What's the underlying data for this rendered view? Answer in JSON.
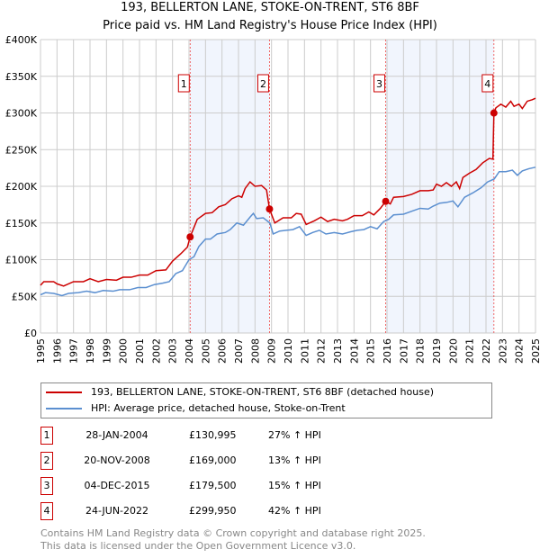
{
  "chart_data": {
    "type": "line",
    "title": "193, BELLERTON LANE, STOKE-ON-TRENT, ST6 8BF",
    "subtitle": "Price paid vs. HM Land Registry's House Price Index (HPI)",
    "xlim": [
      1995,
      2025
    ],
    "ylim": [
      0,
      400000
    ],
    "x_ticks": [
      "1995",
      "1996",
      "1997",
      "1998",
      "1999",
      "2000",
      "2001",
      "2002",
      "2003",
      "2004",
      "2005",
      "2006",
      "2007",
      "2008",
      "2009",
      "2010",
      "2011",
      "2012",
      "2013",
      "2014",
      "2015",
      "2016",
      "2017",
      "2018",
      "2019",
      "2020",
      "2021",
      "2022",
      "2023",
      "2024",
      "2025"
    ],
    "y_ticks": [
      {
        "v": 0,
        "label": "£0"
      },
      {
        "v": 50000,
        "label": "£50K"
      },
      {
        "v": 100000,
        "label": "£100K"
      },
      {
        "v": 150000,
        "label": "£150K"
      },
      {
        "v": 200000,
        "label": "£200K"
      },
      {
        "v": 250000,
        "label": "£250K"
      },
      {
        "v": 300000,
        "label": "£300K"
      },
      {
        "v": 350000,
        "label": "£350K"
      },
      {
        "v": 400000,
        "label": "£400K"
      }
    ],
    "grid": true,
    "series": [
      {
        "name": "193, BELLERTON LANE, STOKE-ON-TRENT, ST6 8BF (detached house)",
        "color": "#cc0000",
        "points": [
          [
            1995,
            65
          ],
          [
            1995.2,
            70
          ],
          [
            1995.8,
            70
          ],
          [
            1996,
            67
          ],
          [
            1996.4,
            64
          ],
          [
            1997,
            70
          ],
          [
            1997.6,
            70
          ],
          [
            1998,
            74
          ],
          [
            1998.5,
            70
          ],
          [
            1999,
            73
          ],
          [
            1999.6,
            72
          ],
          [
            2000,
            76
          ],
          [
            2000.5,
            76
          ],
          [
            2001,
            79
          ],
          [
            2001.5,
            79
          ],
          [
            2002,
            85
          ],
          [
            2002.6,
            86
          ],
          [
            2003,
            98
          ],
          [
            2003.5,
            108
          ],
          [
            2003.9,
            117
          ],
          [
            2004.07,
            131
          ],
          [
            2004.5,
            155
          ],
          [
            2005,
            163
          ],
          [
            2005.4,
            164
          ],
          [
            2005.8,
            172
          ],
          [
            2006.2,
            175
          ],
          [
            2006.6,
            183
          ],
          [
            2007,
            187
          ],
          [
            2007.2,
            185
          ],
          [
            2007.4,
            197
          ],
          [
            2007.7,
            206
          ],
          [
            2008,
            200
          ],
          [
            2008.4,
            201
          ],
          [
            2008.7,
            195
          ],
          [
            2008.88,
            169
          ],
          [
            2009.2,
            150
          ],
          [
            2009.7,
            157
          ],
          [
            2010.2,
            157
          ],
          [
            2010.5,
            163
          ],
          [
            2010.8,
            162
          ],
          [
            2011.1,
            148
          ],
          [
            2011.6,
            153
          ],
          [
            2012,
            158
          ],
          [
            2012.4,
            152
          ],
          [
            2012.8,
            155
          ],
          [
            2013.3,
            153
          ],
          [
            2013.6,
            155
          ],
          [
            2014,
            160
          ],
          [
            2014.5,
            160
          ],
          [
            2014.9,
            165
          ],
          [
            2015.2,
            161
          ],
          [
            2015.6,
            170
          ],
          [
            2015.92,
            179.5
          ],
          [
            2016.2,
            176
          ],
          [
            2016.4,
            185
          ],
          [
            2017,
            186
          ],
          [
            2017.5,
            189
          ],
          [
            2018,
            194
          ],
          [
            2018.5,
            194
          ],
          [
            2018.8,
            195
          ],
          [
            2019,
            203
          ],
          [
            2019.3,
            200
          ],
          [
            2019.6,
            205
          ],
          [
            2019.9,
            200
          ],
          [
            2020.2,
            206
          ],
          [
            2020.4,
            197
          ],
          [
            2020.6,
            212
          ],
          [
            2021,
            218
          ],
          [
            2021.4,
            223
          ],
          [
            2021.8,
            232
          ],
          [
            2022.2,
            238
          ],
          [
            2022.42,
            237
          ],
          [
            2022.48,
            300
          ],
          [
            2022.6,
            307
          ],
          [
            2022.9,
            312
          ],
          [
            2023.2,
            308
          ],
          [
            2023.5,
            316
          ],
          [
            2023.7,
            309
          ],
          [
            2024,
            312
          ],
          [
            2024.2,
            306
          ],
          [
            2024.5,
            316
          ],
          [
            2024.8,
            318
          ],
          [
            2025,
            320
          ]
        ]
      },
      {
        "name": "HPI: Average price, detached house, Stoke-on-Trent",
        "color": "#5b8fd0",
        "points": [
          [
            1995,
            52
          ],
          [
            1995.3,
            55
          ],
          [
            1995.8,
            54
          ],
          [
            1996.3,
            51
          ],
          [
            1996.7,
            54
          ],
          [
            1997.3,
            55
          ],
          [
            1997.8,
            57
          ],
          [
            1998.3,
            55
          ],
          [
            1998.8,
            58
          ],
          [
            1999.4,
            57
          ],
          [
            1999.8,
            59
          ],
          [
            2000.4,
            59
          ],
          [
            2000.9,
            62
          ],
          [
            2001.4,
            62
          ],
          [
            2001.9,
            66
          ],
          [
            2002.4,
            68
          ],
          [
            2002.8,
            70
          ],
          [
            2003.2,
            81
          ],
          [
            2003.6,
            85
          ],
          [
            2004,
            100
          ],
          [
            2004.3,
            104
          ],
          [
            2004.6,
            118
          ],
          [
            2005,
            128
          ],
          [
            2005.3,
            128
          ],
          [
            2005.7,
            135
          ],
          [
            2006.2,
            137
          ],
          [
            2006.5,
            141
          ],
          [
            2006.9,
            150
          ],
          [
            2007.3,
            147
          ],
          [
            2007.7,
            158
          ],
          [
            2007.9,
            163
          ],
          [
            2008.1,
            156
          ],
          [
            2008.5,
            157
          ],
          [
            2008.9,
            150
          ],
          [
            2009.1,
            135
          ],
          [
            2009.5,
            139
          ],
          [
            2009.9,
            140
          ],
          [
            2010.3,
            141
          ],
          [
            2010.7,
            145
          ],
          [
            2011.1,
            133
          ],
          [
            2011.5,
            137
          ],
          [
            2011.9,
            140
          ],
          [
            2012.3,
            135
          ],
          [
            2012.8,
            137
          ],
          [
            2013.3,
            135
          ],
          [
            2013.8,
            138
          ],
          [
            2014.2,
            140
          ],
          [
            2014.6,
            141
          ],
          [
            2015,
            145
          ],
          [
            2015.4,
            142
          ],
          [
            2015.8,
            152
          ],
          [
            2016.1,
            155
          ],
          [
            2016.4,
            161
          ],
          [
            2017,
            162
          ],
          [
            2017.5,
            166
          ],
          [
            2018,
            170
          ],
          [
            2018.5,
            169
          ],
          [
            2018.8,
            173
          ],
          [
            2019.2,
            177
          ],
          [
            2019.6,
            178
          ],
          [
            2020,
            180
          ],
          [
            2020.3,
            172
          ],
          [
            2020.7,
            185
          ],
          [
            2021.2,
            191
          ],
          [
            2021.7,
            198
          ],
          [
            2022.1,
            206
          ],
          [
            2022.5,
            210
          ],
          [
            2022.8,
            220
          ],
          [
            2023.2,
            220
          ],
          [
            2023.6,
            222
          ],
          [
            2023.9,
            215
          ],
          [
            2024.2,
            221
          ],
          [
            2024.6,
            224
          ],
          [
            2025,
            226
          ]
        ]
      }
    ],
    "sales": [
      {
        "n": "1",
        "x": 2004.07,
        "y": 130995,
        "date": "28-JAN-2004",
        "price": "£130,995",
        "hpi": "27% ↑ HPI"
      },
      {
        "n": "2",
        "x": 2008.88,
        "y": 169000,
        "date": "20-NOV-2008",
        "price": "£169,000",
        "hpi": "13% ↑ HPI"
      },
      {
        "n": "3",
        "x": 2015.92,
        "y": 179500,
        "date": "04-DEC-2015",
        "price": "£179,500",
        "hpi": "15% ↑ HPI"
      },
      {
        "n": "4",
        "x": 2022.48,
        "y": 299950,
        "date": "24-JUN-2022",
        "price": "£299,950",
        "hpi": "42% ↑ HPI"
      }
    ],
    "legend_position": "below"
  },
  "footer": [
    "Contains HM Land Registry data © Crown copyright and database right 2025.",
    "This data is licensed under the Open Government Licence v3.0."
  ]
}
